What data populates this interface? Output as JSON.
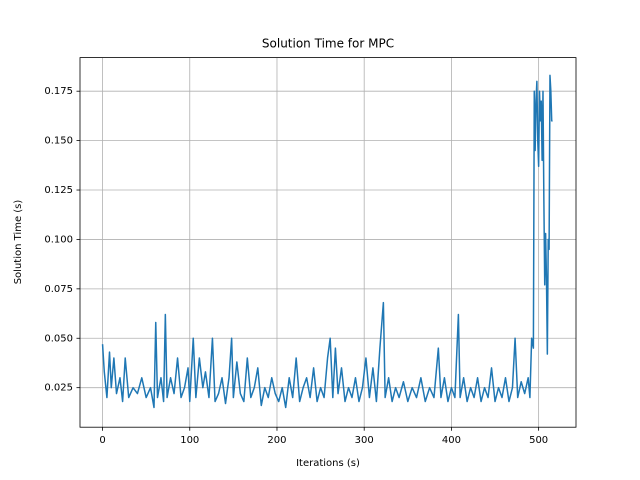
{
  "chart_data": {
    "type": "line",
    "title": "Solution Time for MPC",
    "x_label": "Iterations (s)",
    "y_label": "Solution Time (s)",
    "grid": true,
    "xlim": [
      -25.85,
      542.85
    ],
    "xticks": [
      0,
      100,
      200,
      300,
      400,
      500
    ],
    "ylim": [
      0.005,
      0.192
    ],
    "yticks": [
      0.025,
      {
        "value": 0.05,
        "label": "0.050"
      },
      0.075,
      {
        "value": 0.1,
        "label": "0.100"
      },
      0.125,
      {
        "value": 0.15,
        "label": "0.150"
      },
      0.175
    ],
    "x": [
      0,
      2,
      5,
      8,
      10,
      13,
      16,
      20,
      23,
      26,
      30,
      35,
      40,
      45,
      50,
      55,
      59,
      61,
      63,
      67,
      70,
      72,
      74,
      78,
      82,
      86,
      90,
      94,
      98,
      100,
      104,
      107,
      111,
      115,
      118,
      122,
      126,
      129,
      133,
      137,
      141,
      145,
      148,
      150,
      154,
      158,
      162,
      166,
      170,
      174,
      178,
      182,
      186,
      190,
      194,
      198,
      202,
      206,
      210,
      214,
      218,
      222,
      226,
      230,
      234,
      238,
      242,
      246,
      250,
      254,
      258,
      261,
      264,
      267,
      270,
      274,
      278,
      282,
      286,
      290,
      294,
      298,
      302,
      306,
      310,
      314,
      318,
      322,
      324,
      328,
      332,
      336,
      340,
      345,
      350,
      355,
      360,
      365,
      370,
      375,
      380,
      385,
      388,
      392,
      396,
      400,
      404,
      408,
      410,
      414,
      418,
      422,
      426,
      430,
      434,
      438,
      442,
      446,
      450,
      454,
      458,
      462,
      466,
      470,
      473,
      476,
      480,
      484,
      488,
      490,
      492,
      494,
      495,
      496,
      497,
      498,
      499,
      500,
      501,
      502,
      503,
      504,
      505,
      506,
      507,
      508,
      509,
      510,
      511,
      512,
      513,
      514,
      515,
      516
    ],
    "series": [
      {
        "color": "#1f77b4",
        "values": [
          0.047,
          0.033,
          0.02,
          0.043,
          0.025,
          0.04,
          0.022,
          0.03,
          0.018,
          0.04,
          0.02,
          0.025,
          0.022,
          0.03,
          0.02,
          0.025,
          0.015,
          0.058,
          0.02,
          0.03,
          0.018,
          0.062,
          0.02,
          0.03,
          0.022,
          0.04,
          0.02,
          0.025,
          0.035,
          0.018,
          0.05,
          0.02,
          0.04,
          0.025,
          0.033,
          0.02,
          0.05,
          0.018,
          0.022,
          0.03,
          0.017,
          0.03,
          0.05,
          0.02,
          0.038,
          0.022,
          0.018,
          0.04,
          0.02,
          0.025,
          0.035,
          0.016,
          0.025,
          0.02,
          0.03,
          0.022,
          0.018,
          0.025,
          0.015,
          0.03,
          0.02,
          0.04,
          0.018,
          0.025,
          0.03,
          0.02,
          0.035,
          0.018,
          0.025,
          0.02,
          0.04,
          0.05,
          0.02,
          0.045,
          0.022,
          0.035,
          0.018,
          0.025,
          0.02,
          0.03,
          0.018,
          0.025,
          0.04,
          0.02,
          0.035,
          0.018,
          0.045,
          0.068,
          0.02,
          0.03,
          0.018,
          0.025,
          0.02,
          0.028,
          0.018,
          0.025,
          0.02,
          0.03,
          0.018,
          0.025,
          0.02,
          0.045,
          0.02,
          0.03,
          0.018,
          0.025,
          0.02,
          0.062,
          0.02,
          0.03,
          0.018,
          0.025,
          0.02,
          0.03,
          0.018,
          0.025,
          0.02,
          0.035,
          0.018,
          0.025,
          0.02,
          0.03,
          0.018,
          0.025,
          0.05,
          0.02,
          0.028,
          0.022,
          0.03,
          0.02,
          0.05,
          0.045,
          0.175,
          0.145,
          0.17,
          0.18,
          0.15,
          0.137,
          0.175,
          0.16,
          0.17,
          0.14,
          0.175,
          0.12,
          0.077,
          0.103,
          0.08,
          0.042,
          0.1,
          0.095,
          0.183,
          0.175,
          0.16,
          0.16
        ]
      }
    ]
  }
}
